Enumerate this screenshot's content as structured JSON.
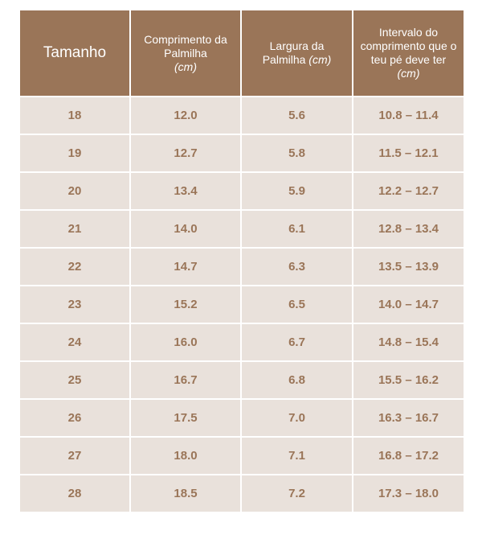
{
  "header": {
    "size": "Tamanho",
    "insole_length": {
      "text": "Comprimento da Palmilha",
      "unit": "(cm)"
    },
    "insole_width": {
      "text": "Largura da Palmilha",
      "unit": "(cm)"
    },
    "foot_range": {
      "text": "Intervalo do comprimento que o teu pé deve ter",
      "unit": "(cm)"
    }
  },
  "rows": [
    {
      "size": "18",
      "length": "12.0",
      "width": "5.6",
      "range": "10.8 – 11.4"
    },
    {
      "size": "19",
      "length": "12.7",
      "width": "5.8",
      "range": "11.5 – 12.1"
    },
    {
      "size": "20",
      "length": "13.4",
      "width": "5.9",
      "range": "12.2 – 12.7"
    },
    {
      "size": "21",
      "length": "14.0",
      "width": "6.1",
      "range": "12.8 – 13.4"
    },
    {
      "size": "22",
      "length": "14.7",
      "width": "6.3",
      "range": "13.5 – 13.9"
    },
    {
      "size": "23",
      "length": "15.2",
      "width": "6.5",
      "range": "14.0 – 14.7"
    },
    {
      "size": "24",
      "length": "16.0",
      "width": "6.7",
      "range": "14.8 – 15.4"
    },
    {
      "size": "25",
      "length": "16.7",
      "width": "6.8",
      "range": "15.5 – 16.2"
    },
    {
      "size": "26",
      "length": "17.5",
      "width": "7.0",
      "range": "16.3 – 16.7"
    },
    {
      "size": "27",
      "length": "18.0",
      "width": "7.1",
      "range": "16.8 – 17.2"
    },
    {
      "size": "28",
      "length": "18.5",
      "width": "7.2",
      "range": "17.3 – 18.0"
    }
  ],
  "colors": {
    "header_background": "#9a7558",
    "header_text": "#ffffff",
    "cell_background": "#e9e1db",
    "cell_text": "#9a7558"
  }
}
